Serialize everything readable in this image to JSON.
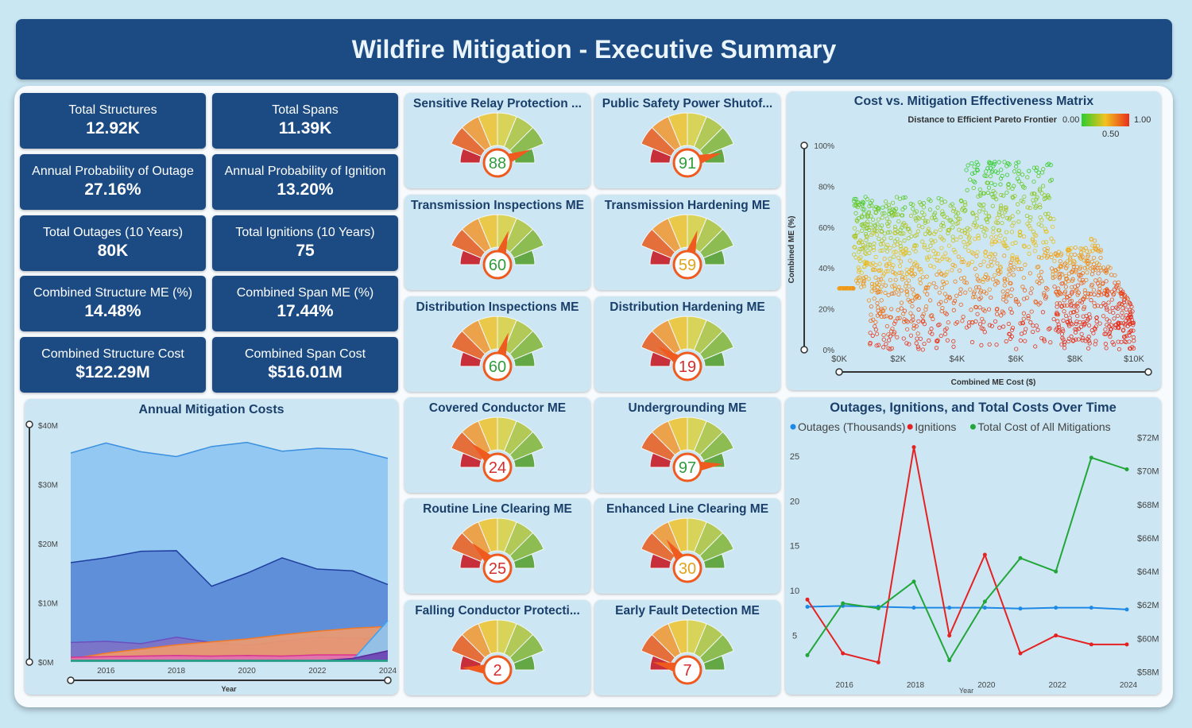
{
  "title": "Wildfire Mitigation - Executive Summary",
  "kpis": [
    {
      "label": "Total Structures",
      "value": "12.92K"
    },
    {
      "label": "Total Spans",
      "value": "11.39K"
    },
    {
      "label": "Annual Probability of Outage",
      "value": "27.16%"
    },
    {
      "label": "Annual Probability of Ignition",
      "value": "13.20%"
    },
    {
      "label": "Total Outages (10 Years)",
      "value": "80K"
    },
    {
      "label": "Total Ignitions (10 Years)",
      "value": "75"
    },
    {
      "label": "Combined Structure ME (%)",
      "value": "14.48%"
    },
    {
      "label": "Combined Span ME (%)",
      "value": "17.44%"
    },
    {
      "label": "Combined Structure Cost",
      "value": "$122.29M"
    },
    {
      "label": "Combined Span Cost",
      "value": "$516.01M"
    }
  ],
  "gauges": [
    {
      "title": "Sensitive Relay Protection ...",
      "value": 88,
      "color": "#2e9d3a"
    },
    {
      "title": "Public Safety Power Shutof...",
      "value": 91,
      "color": "#2e9d3a"
    },
    {
      "title": "Transmission Inspections ME",
      "value": 60,
      "color": "#2e9d3a"
    },
    {
      "title": "Transmission Hardening ME",
      "value": 59,
      "color": "#e0a21a"
    },
    {
      "title": "Distribution Inspections ME",
      "value": 60,
      "color": "#2e9d3a"
    },
    {
      "title": "Distribution Hardening ME",
      "value": 19,
      "color": "#d62c2c"
    },
    {
      "title": "Covered Conductor ME",
      "value": 24,
      "color": "#d62c2c"
    },
    {
      "title": "Undergrounding ME",
      "value": 97,
      "color": "#2e9d3a"
    },
    {
      "title": "Routine Line Clearing ME",
      "value": 25,
      "color": "#d62c2c"
    },
    {
      "title": "Enhanced Line Clearing ME",
      "value": 30,
      "color": "#e0a21a"
    },
    {
      "title": "Falling Conductor Protecti...",
      "value": 2,
      "color": "#d62c2c"
    },
    {
      "title": "Early Fault Detection ME",
      "value": 7,
      "color": "#d62c2c"
    }
  ],
  "chart_data": [
    {
      "type": "area",
      "title": "Annual Mitigation Costs",
      "xlabel": "Year",
      "ylabel": "",
      "x": [
        2015,
        2016,
        2017,
        2018,
        2019,
        2020,
        2021,
        2022,
        2023,
        2024
      ],
      "x_ticks": [
        "2016",
        "2018",
        "2020",
        "2022",
        "2024"
      ],
      "y_ticks": [
        "$0M",
        "$10M",
        "$20M",
        "$30M",
        "$40M"
      ],
      "ylim": [
        0,
        40
      ],
      "series": [
        {
          "values": [
            35.3,
            37.0,
            35.5,
            34.7,
            36.4,
            37.1,
            35.6,
            36.1,
            35.9,
            34.4
          ],
          "color": "#8cc4f2",
          "stroke": "#3b8fe0"
        },
        {
          "values": [
            16.8,
            17.6,
            18.7,
            18.8,
            12.8,
            15.0,
            17.6,
            15.7,
            15.4,
            13.1
          ],
          "color": "#5b88d6",
          "stroke": "#1f3f9e"
        },
        {
          "values": [
            3.3,
            3.5,
            3.1,
            4.2,
            3.3,
            2.8,
            3.5,
            4.2,
            4.0,
            3.9
          ],
          "color": "#7e72c6",
          "stroke": "#6a4fc0"
        },
        {
          "values": [
            0.5,
            1.5,
            2.2,
            2.9,
            3.4,
            3.9,
            4.6,
            5.2,
            5.7,
            6.0
          ],
          "color": "#f19a6b",
          "stroke": "#f07a2a"
        },
        {
          "values": [
            0.8,
            0.9,
            1.0,
            1.1,
            1.0,
            1.1,
            1.0,
            1.2,
            1.2,
            1.1
          ],
          "color": "#e06fb1",
          "stroke": "#d8338f"
        },
        {
          "values": [
            0.2,
            0.2,
            0.3,
            0.3,
            0.2,
            0.2,
            0.3,
            0.3,
            0.3,
            7.0
          ],
          "color": "#8cc4f2",
          "stroke": "#3aa0f0"
        },
        {
          "values": [
            0.1,
            0.1,
            0.1,
            0.1,
            0.1,
            0.1,
            0.1,
            0.2,
            0.6,
            1.9
          ],
          "color": "#6a3fb0",
          "stroke": "#5b2a9a"
        },
        {
          "values": [
            0.3,
            0.3,
            0.3,
            0.3,
            0.3,
            0.3,
            0.3,
            0.3,
            0.3,
            0.3
          ],
          "color": "#3bb39a",
          "stroke": "#1f9a80"
        }
      ]
    },
    {
      "type": "scatter",
      "title": "Cost vs. Mitigation Effectiveness Matrix",
      "legend_title": "Distance to Efficient Pareto Frontier",
      "legend_min": "0.00",
      "legend_mid": "0.50",
      "legend_max": "1.00",
      "xlabel": "Combined ME Cost ($)",
      "ylabel": "Combined ME (%)",
      "x_ticks": [
        "$0K",
        "$2K",
        "$4K",
        "$6K",
        "$8K",
        "$10K"
      ],
      "y_ticks": [
        "0%",
        "20%",
        "40%",
        "60%",
        "80%",
        "100%"
      ],
      "xlim": [
        0,
        10000
      ],
      "ylim": [
        0,
        100
      ],
      "note": "dense cloud of several thousand points; approximate distribution",
      "grid": false
    },
    {
      "type": "line",
      "title": "Outages, Ignitions, and Total Costs Over Time",
      "xlabel": "Year",
      "x": [
        2015,
        2016,
        2017,
        2018,
        2019,
        2020,
        2021,
        2022,
        2023,
        2024
      ],
      "x_ticks": [
        "2016",
        "2018",
        "2020",
        "2022",
        "2024"
      ],
      "y_ticks_left": [
        "5",
        "10",
        "15",
        "20",
        "25"
      ],
      "y_ticks_right": [
        "$58M",
        "$60M",
        "$62M",
        "$64M",
        "$66M",
        "$68M",
        "$70M",
        "$72M"
      ],
      "ylim_left": [
        0,
        28
      ],
      "ylim_right": [
        57.5,
        72.5
      ],
      "legend_position": "top-left",
      "series": [
        {
          "name": "Outages (Thousands)",
          "color": "#1e88e5",
          "axis": "left",
          "values": [
            8.2,
            8.3,
            8.2,
            8.1,
            8.1,
            8.1,
            8.0,
            8.1,
            8.1,
            7.9
          ]
        },
        {
          "name": "Ignitions",
          "color": "#e52222",
          "axis": "left",
          "values": [
            9.0,
            3.0,
            2.0,
            26.0,
            5.0,
            14.0,
            3.0,
            5.0,
            4.0,
            4.0
          ]
        },
        {
          "name": "Total Cost of All Mitigations",
          "color": "#22a63a",
          "axis": "right",
          "values": [
            59.0,
            62.1,
            61.8,
            63.4,
            58.7,
            62.2,
            64.8,
            64.0,
            70.8,
            70.1
          ]
        }
      ]
    }
  ]
}
